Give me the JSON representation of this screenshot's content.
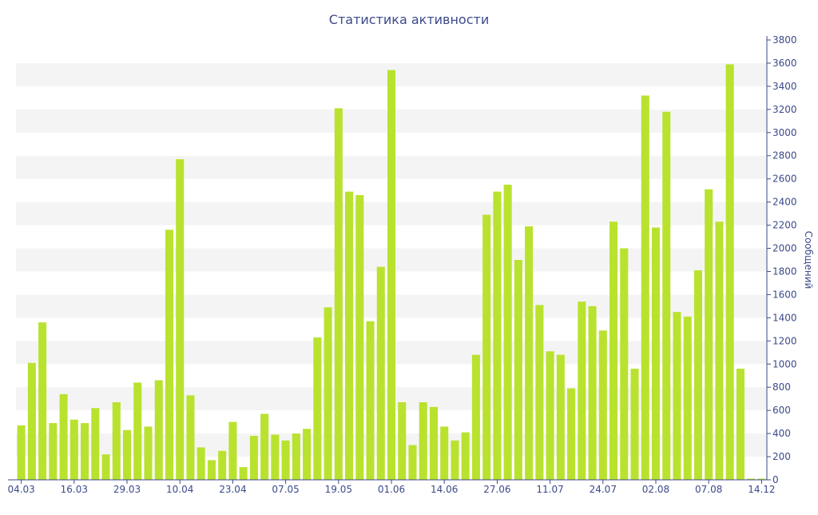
{
  "colors": {
    "bar": "#b9e22f",
    "axis": "#3c4a8a",
    "band": "#f4f4f4",
    "text": "#3c4a8a"
  },
  "chart_data": {
    "type": "bar",
    "title": "Статистика активности",
    "xlabel": "",
    "ylabel": "Сообщений",
    "ylim": [
      0,
      3800
    ],
    "yticks": [
      0,
      200,
      400,
      600,
      800,
      1000,
      1200,
      1400,
      1600,
      1800,
      2000,
      2200,
      2400,
      2600,
      2800,
      3000,
      3200,
      3400,
      3600,
      3800
    ],
    "xtick_labels": [
      "04.03",
      "16.03",
      "29.03",
      "10.04",
      "23.04",
      "07.05",
      "19.05",
      "01.06",
      "14.06",
      "27.06",
      "11.07",
      "24.07",
      "02.08",
      "07.08",
      "14.12"
    ],
    "xtick_index": [
      0,
      5,
      10,
      15,
      20,
      25,
      30,
      35,
      40,
      45,
      50,
      55,
      60,
      65,
      70
    ],
    "grid": "alternating horizontal bands",
    "y_axis_position": "right",
    "values": [
      470,
      1010,
      1360,
      490,
      740,
      520,
      490,
      620,
      220,
      670,
      430,
      840,
      460,
      860,
      2160,
      2770,
      730,
      280,
      170,
      250,
      500,
      110,
      380,
      570,
      390,
      340,
      400,
      440,
      1230,
      1490,
      3210,
      2490,
      2460,
      1370,
      1840,
      3540,
      670,
      300,
      670,
      630,
      460,
      340,
      410,
      1080,
      2290,
      2490,
      2550,
      1900,
      2190,
      1510,
      1110,
      1080,
      790,
      1540,
      1500,
      1290,
      2230,
      2000,
      960,
      3320,
      2180,
      3180,
      1450,
      1410,
      1810,
      2510,
      2230,
      3590,
      960,
      10,
      10
    ]
  }
}
